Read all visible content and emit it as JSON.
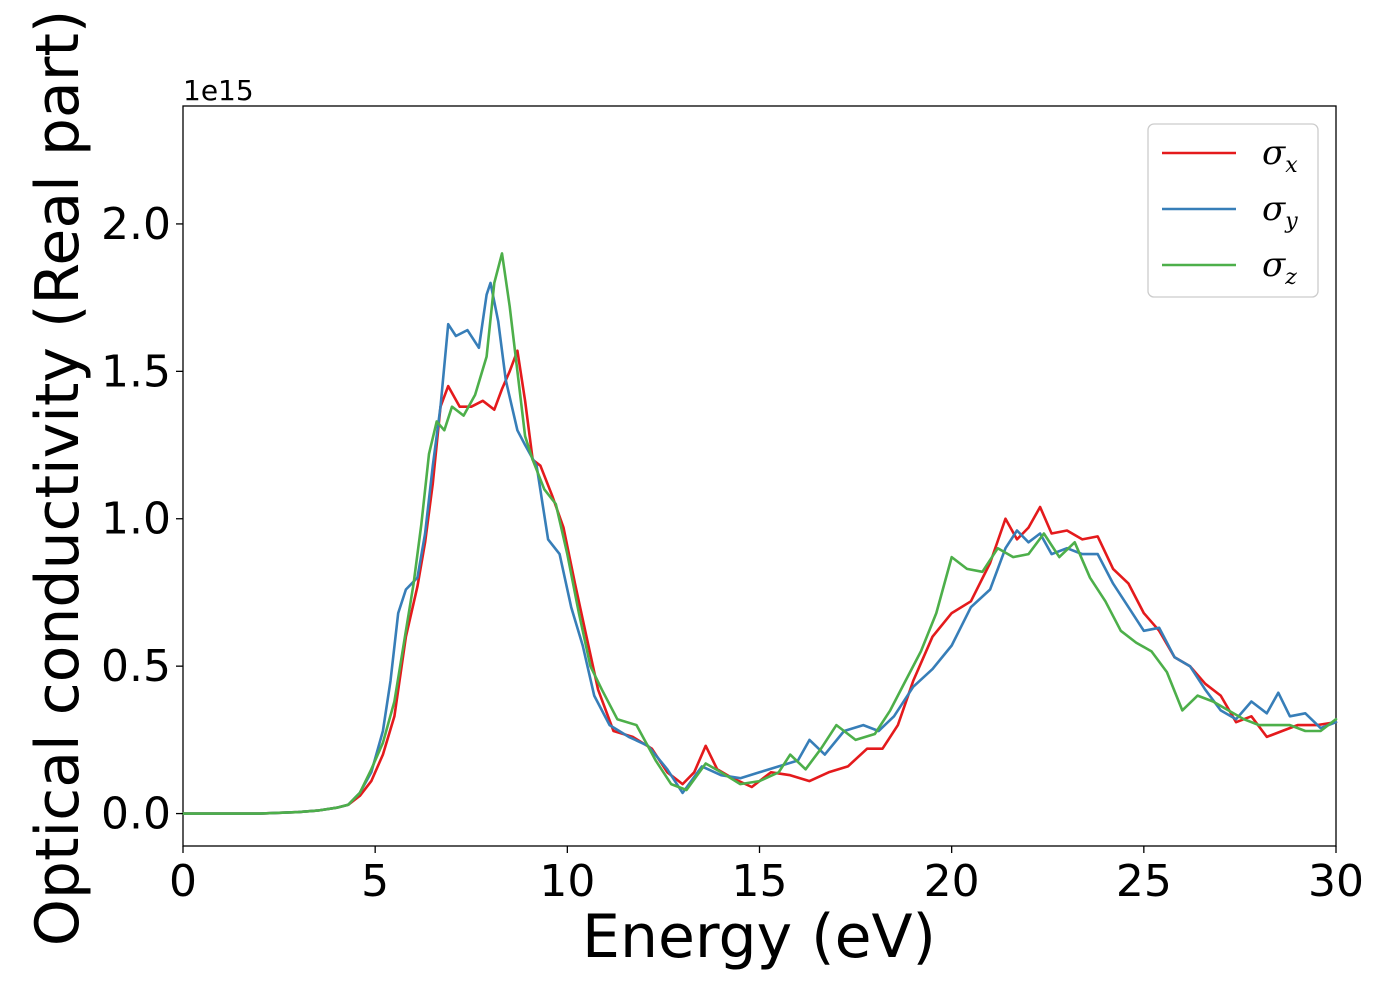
{
  "chart_data": {
    "type": "line",
    "title": "",
    "xlabel": "Energy (eV)",
    "ylabel": "Optical conductivity (Real part)",
    "y_offset_text": "1e15",
    "xlim": [
      0,
      30
    ],
    "ylim": [
      -0.11,
      2.4
    ],
    "x_ticks": [
      0,
      5,
      10,
      15,
      20,
      25,
      30
    ],
    "x_tick_labels": [
      "0",
      "5",
      "10",
      "15",
      "20",
      "25",
      "30"
    ],
    "y_ticks": [
      0.0,
      0.5,
      1.0,
      1.5,
      2.0
    ],
    "y_tick_labels": [
      "0.0",
      "0.5",
      "1.0",
      "1.5",
      "2.0"
    ],
    "grid": false,
    "legend_position": "top-right",
    "series": [
      {
        "name": "σx",
        "legend_symbol": "σ",
        "legend_subscript": "x",
        "color": "#e41a1c",
        "points": [
          [
            0,
            0
          ],
          [
            1,
            0
          ],
          [
            2,
            0
          ],
          [
            3,
            0.005
          ],
          [
            3.5,
            0.01
          ],
          [
            4,
            0.02
          ],
          [
            4.3,
            0.03
          ],
          [
            4.6,
            0.06
          ],
          [
            4.9,
            0.11
          ],
          [
            5.2,
            0.2
          ],
          [
            5.5,
            0.33
          ],
          [
            5.8,
            0.6
          ],
          [
            6.1,
            0.77
          ],
          [
            6.3,
            0.92
          ],
          [
            6.5,
            1.12
          ],
          [
            6.7,
            1.38
          ],
          [
            6.9,
            1.45
          ],
          [
            7.2,
            1.38
          ],
          [
            7.5,
            1.38
          ],
          [
            7.8,
            1.4
          ],
          [
            8.1,
            1.37
          ],
          [
            8.3,
            1.44
          ],
          [
            8.5,
            1.5
          ],
          [
            8.7,
            1.57
          ],
          [
            8.9,
            1.4
          ],
          [
            9.1,
            1.2
          ],
          [
            9.3,
            1.18
          ],
          [
            9.6,
            1.08
          ],
          [
            9.9,
            0.97
          ],
          [
            10.2,
            0.78
          ],
          [
            10.5,
            0.6
          ],
          [
            10.8,
            0.42
          ],
          [
            11.2,
            0.28
          ],
          [
            11.7,
            0.26
          ],
          [
            12.2,
            0.22
          ],
          [
            12.6,
            0.14
          ],
          [
            13.0,
            0.1
          ],
          [
            13.3,
            0.14
          ],
          [
            13.6,
            0.23
          ],
          [
            13.9,
            0.15
          ],
          [
            14.3,
            0.12
          ],
          [
            14.8,
            0.09
          ],
          [
            15.3,
            0.14
          ],
          [
            15.8,
            0.13
          ],
          [
            16.3,
            0.11
          ],
          [
            16.8,
            0.14
          ],
          [
            17.3,
            0.16
          ],
          [
            17.8,
            0.22
          ],
          [
            18.2,
            0.22
          ],
          [
            18.6,
            0.3
          ],
          [
            19.0,
            0.45
          ],
          [
            19.5,
            0.6
          ],
          [
            20.0,
            0.68
          ],
          [
            20.5,
            0.72
          ],
          [
            21.0,
            0.85
          ],
          [
            21.4,
            1.0
          ],
          [
            21.7,
            0.93
          ],
          [
            22.0,
            0.97
          ],
          [
            22.3,
            1.04
          ],
          [
            22.6,
            0.95
          ],
          [
            23.0,
            0.96
          ],
          [
            23.4,
            0.93
          ],
          [
            23.8,
            0.94
          ],
          [
            24.2,
            0.83
          ],
          [
            24.6,
            0.78
          ],
          [
            25.0,
            0.68
          ],
          [
            25.4,
            0.62
          ],
          [
            25.8,
            0.53
          ],
          [
            26.2,
            0.5
          ],
          [
            26.6,
            0.44
          ],
          [
            27.0,
            0.4
          ],
          [
            27.4,
            0.31
          ],
          [
            27.8,
            0.33
          ],
          [
            28.2,
            0.26
          ],
          [
            28.6,
            0.28
          ],
          [
            29.0,
            0.3
          ],
          [
            29.5,
            0.3
          ],
          [
            30.0,
            0.31
          ]
        ]
      },
      {
        "name": "σy",
        "legend_symbol": "σ",
        "legend_subscript": "y",
        "color": "#377eb8",
        "points": [
          [
            0,
            0
          ],
          [
            1,
            0
          ],
          [
            2,
            0
          ],
          [
            3,
            0.005
          ],
          [
            3.5,
            0.01
          ],
          [
            4,
            0.02
          ],
          [
            4.3,
            0.03
          ],
          [
            4.6,
            0.07
          ],
          [
            4.9,
            0.14
          ],
          [
            5.2,
            0.28
          ],
          [
            5.4,
            0.45
          ],
          [
            5.6,
            0.68
          ],
          [
            5.8,
            0.76
          ],
          [
            6.1,
            0.8
          ],
          [
            6.3,
            0.95
          ],
          [
            6.5,
            1.18
          ],
          [
            6.7,
            1.38
          ],
          [
            6.9,
            1.66
          ],
          [
            7.1,
            1.62
          ],
          [
            7.4,
            1.64
          ],
          [
            7.7,
            1.58
          ],
          [
            7.9,
            1.76
          ],
          [
            8.0,
            1.8
          ],
          [
            8.2,
            1.67
          ],
          [
            8.4,
            1.47
          ],
          [
            8.7,
            1.3
          ],
          [
            8.9,
            1.25
          ],
          [
            9.2,
            1.18
          ],
          [
            9.5,
            0.93
          ],
          [
            9.8,
            0.88
          ],
          [
            10.1,
            0.7
          ],
          [
            10.4,
            0.57
          ],
          [
            10.7,
            0.4
          ],
          [
            11.1,
            0.3
          ],
          [
            11.6,
            0.26
          ],
          [
            12.1,
            0.23
          ],
          [
            12.6,
            0.15
          ],
          [
            13.0,
            0.07
          ],
          [
            13.5,
            0.16
          ],
          [
            14.0,
            0.13
          ],
          [
            14.5,
            0.12
          ],
          [
            15.0,
            0.14
          ],
          [
            15.5,
            0.16
          ],
          [
            16.0,
            0.18
          ],
          [
            16.3,
            0.25
          ],
          [
            16.7,
            0.2
          ],
          [
            17.2,
            0.28
          ],
          [
            17.7,
            0.3
          ],
          [
            18.1,
            0.28
          ],
          [
            18.5,
            0.33
          ],
          [
            19.0,
            0.43
          ],
          [
            19.5,
            0.49
          ],
          [
            20.0,
            0.57
          ],
          [
            20.5,
            0.7
          ],
          [
            21.0,
            0.76
          ],
          [
            21.4,
            0.9
          ],
          [
            21.7,
            0.96
          ],
          [
            22.0,
            0.92
          ],
          [
            22.3,
            0.95
          ],
          [
            22.6,
            0.88
          ],
          [
            23.0,
            0.9
          ],
          [
            23.4,
            0.88
          ],
          [
            23.8,
            0.88
          ],
          [
            24.2,
            0.78
          ],
          [
            24.6,
            0.7
          ],
          [
            25.0,
            0.62
          ],
          [
            25.4,
            0.63
          ],
          [
            25.8,
            0.53
          ],
          [
            26.2,
            0.5
          ],
          [
            26.6,
            0.42
          ],
          [
            27.0,
            0.35
          ],
          [
            27.4,
            0.32
          ],
          [
            27.8,
            0.38
          ],
          [
            28.2,
            0.34
          ],
          [
            28.5,
            0.41
          ],
          [
            28.8,
            0.33
          ],
          [
            29.2,
            0.34
          ],
          [
            29.6,
            0.29
          ],
          [
            30.0,
            0.31
          ]
        ]
      },
      {
        "name": "σz",
        "legend_symbol": "σ",
        "legend_subscript": "z",
        "color": "#4daf4a",
        "points": [
          [
            0,
            0
          ],
          [
            1,
            0
          ],
          [
            2,
            0
          ],
          [
            3,
            0.005
          ],
          [
            3.5,
            0.01
          ],
          [
            4,
            0.02
          ],
          [
            4.3,
            0.03
          ],
          [
            4.6,
            0.07
          ],
          [
            4.9,
            0.15
          ],
          [
            5.2,
            0.24
          ],
          [
            5.5,
            0.38
          ],
          [
            5.8,
            0.62
          ],
          [
            6.0,
            0.78
          ],
          [
            6.2,
            0.98
          ],
          [
            6.4,
            1.22
          ],
          [
            6.6,
            1.33
          ],
          [
            6.8,
            1.3
          ],
          [
            7.0,
            1.38
          ],
          [
            7.3,
            1.35
          ],
          [
            7.6,
            1.42
          ],
          [
            7.9,
            1.55
          ],
          [
            8.1,
            1.8
          ],
          [
            8.3,
            1.9
          ],
          [
            8.5,
            1.72
          ],
          [
            8.7,
            1.5
          ],
          [
            8.9,
            1.28
          ],
          [
            9.1,
            1.2
          ],
          [
            9.4,
            1.1
          ],
          [
            9.7,
            1.05
          ],
          [
            10.0,
            0.88
          ],
          [
            10.3,
            0.68
          ],
          [
            10.6,
            0.5
          ],
          [
            10.9,
            0.42
          ],
          [
            11.3,
            0.32
          ],
          [
            11.8,
            0.3
          ],
          [
            12.3,
            0.18
          ],
          [
            12.7,
            0.1
          ],
          [
            13.1,
            0.08
          ],
          [
            13.6,
            0.17
          ],
          [
            14.0,
            0.14
          ],
          [
            14.5,
            0.1
          ],
          [
            15.0,
            0.11
          ],
          [
            15.5,
            0.14
          ],
          [
            15.8,
            0.2
          ],
          [
            16.2,
            0.15
          ],
          [
            16.6,
            0.22
          ],
          [
            17.0,
            0.3
          ],
          [
            17.5,
            0.25
          ],
          [
            18.0,
            0.27
          ],
          [
            18.4,
            0.35
          ],
          [
            18.8,
            0.45
          ],
          [
            19.2,
            0.55
          ],
          [
            19.6,
            0.68
          ],
          [
            20.0,
            0.87
          ],
          [
            20.4,
            0.83
          ],
          [
            20.8,
            0.82
          ],
          [
            21.2,
            0.9
          ],
          [
            21.6,
            0.87
          ],
          [
            22.0,
            0.88
          ],
          [
            22.4,
            0.95
          ],
          [
            22.8,
            0.87
          ],
          [
            23.2,
            0.92
          ],
          [
            23.6,
            0.8
          ],
          [
            24.0,
            0.72
          ],
          [
            24.4,
            0.62
          ],
          [
            24.8,
            0.58
          ],
          [
            25.2,
            0.55
          ],
          [
            25.6,
            0.48
          ],
          [
            26.0,
            0.35
          ],
          [
            26.4,
            0.4
          ],
          [
            26.8,
            0.38
          ],
          [
            27.2,
            0.35
          ],
          [
            27.6,
            0.32
          ],
          [
            28.0,
            0.3
          ],
          [
            28.4,
            0.3
          ],
          [
            28.8,
            0.3
          ],
          [
            29.2,
            0.28
          ],
          [
            29.6,
            0.28
          ],
          [
            30.0,
            0.32
          ]
        ]
      }
    ]
  }
}
